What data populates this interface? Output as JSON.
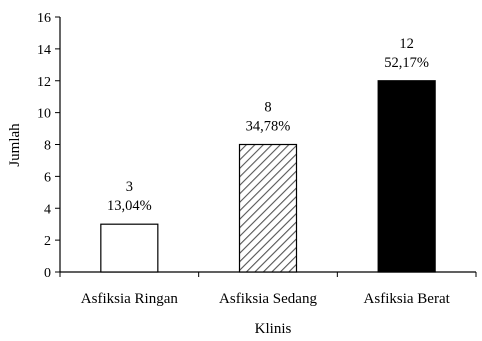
{
  "chart_data": {
    "type": "bar",
    "categories": [
      "Asfiksia Ringan",
      "Asfiksia Sedang",
      "Asfiksia Berat"
    ],
    "values": [
      3,
      8,
      12
    ],
    "percent_labels": [
      "13,04%",
      "34,78%",
      "52,17%"
    ],
    "fills": [
      "white",
      "hatched",
      "black"
    ],
    "xlabel": "Klinis",
    "ylabel": "Jumlah",
    "ylim": [
      0,
      16
    ],
    "yticks": [
      0,
      2,
      4,
      6,
      8,
      10,
      12,
      14,
      16
    ],
    "grid": false,
    "legend": "none"
  }
}
